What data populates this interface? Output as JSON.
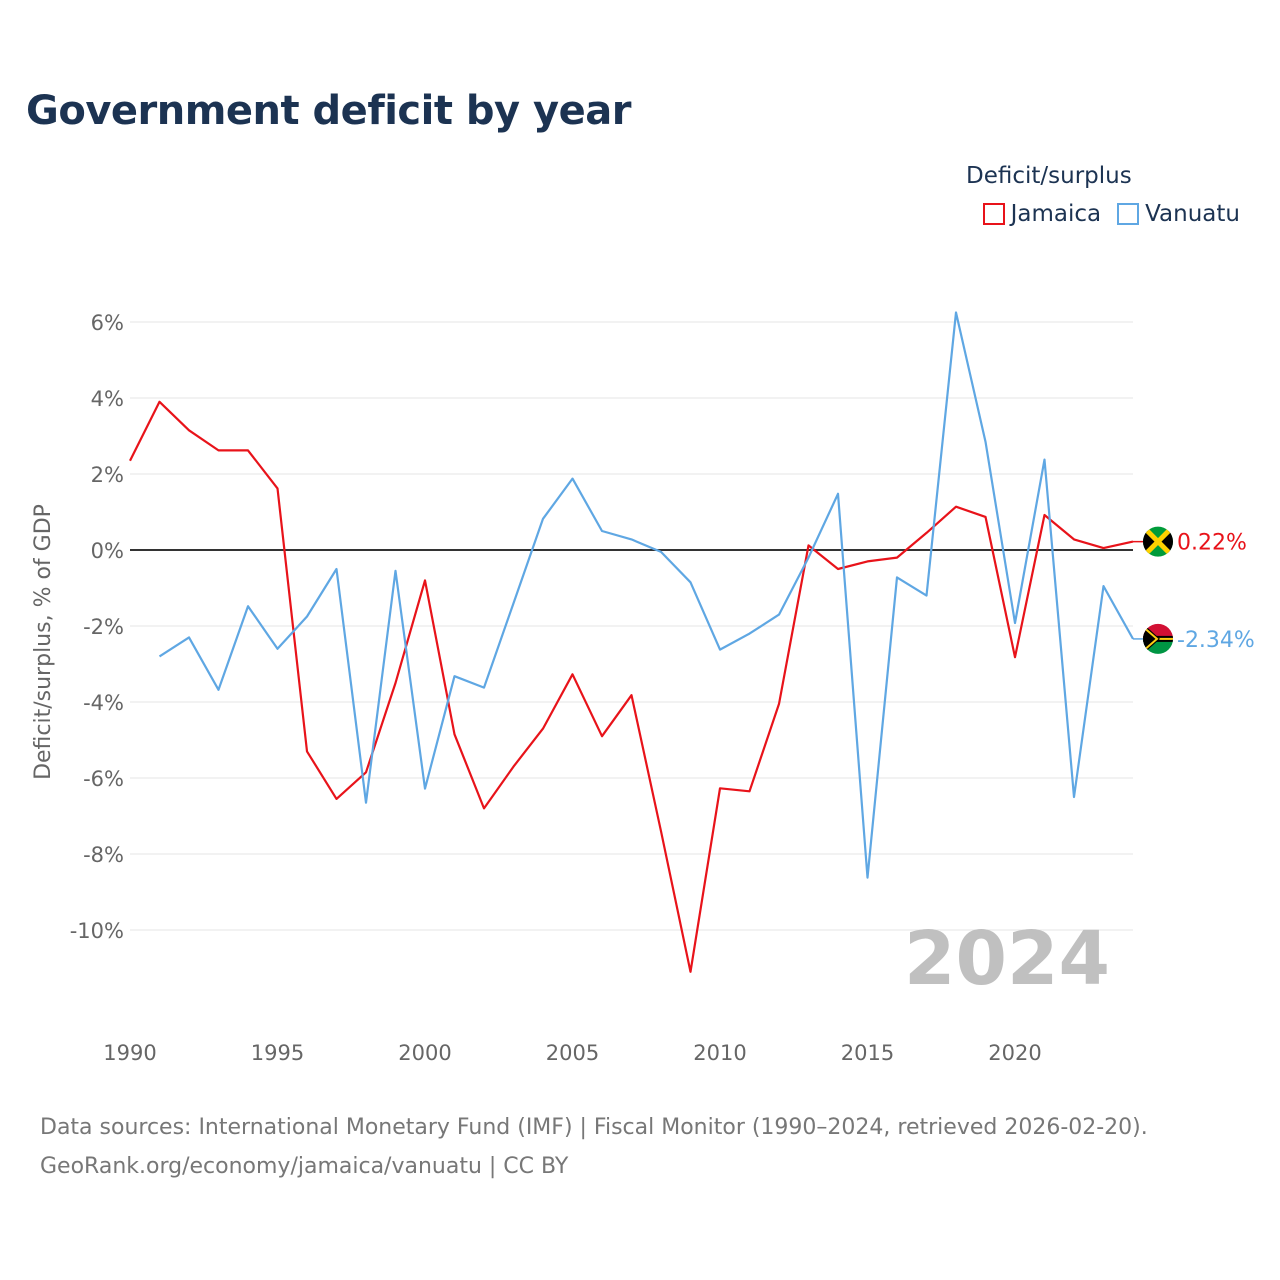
{
  "colors": {
    "jamaica": "#e8131a",
    "vanuatu": "#5fa7e3",
    "title": "#1c3352",
    "axis_text": "#666666",
    "grid": "#e6e6e6",
    "zero_line": "#333333",
    "year_watermark": "#c0c0c0"
  },
  "header": {
    "title": "Government deficit by year"
  },
  "legend": {
    "title": "Deficit/surplus",
    "items": [
      {
        "label": "Jamaica",
        "color": "#e8131a"
      },
      {
        "label": "Vanuatu",
        "color": "#5fa7e3"
      }
    ]
  },
  "footer": {
    "source_line1": "Data sources: International Monetary Fund (IMF) | Fiscal Monitor (1990–2024, retrieved 2026-02-20).",
    "source_line2": "GeoRank.org/economy/jamaica/vanuatu | CC BY"
  },
  "chart_data": {
    "type": "line",
    "title": "Government deficit by year",
    "xlabel": "",
    "ylabel": "Deficit/surplus, % of GDP",
    "xlim": [
      1990,
      2024
    ],
    "ylim": [
      -12,
      6.5
    ],
    "x_ticks": [
      1990,
      1995,
      2000,
      2005,
      2010,
      2015,
      2020
    ],
    "y_ticks": [
      6,
      4,
      2,
      0,
      -2,
      -4,
      -6,
      -8,
      -10
    ],
    "y_tick_labels": [
      "6%",
      "4%",
      "2%",
      "0%",
      "-2%",
      "-4%",
      "-6%",
      "-8%",
      "-10%"
    ],
    "watermark_year": "2024",
    "series": [
      {
        "name": "Jamaica",
        "color": "#e8131a",
        "x": [
          1990,
          1991,
          1992,
          1993,
          1994,
          1995,
          1996,
          1997,
          1998,
          1999,
          2000,
          2001,
          2002,
          2003,
          2004,
          2005,
          2006,
          2007,
          2008,
          2009,
          2010,
          2011,
          2012,
          2013,
          2014,
          2015,
          2016,
          2017,
          2018,
          2019,
          2020,
          2021,
          2022,
          2023,
          2024
        ],
        "values": [
          2.35,
          3.9,
          3.15,
          2.62,
          2.62,
          1.62,
          -5.3,
          -6.55,
          -5.85,
          -3.5,
          -0.8,
          -4.85,
          -6.8,
          -5.7,
          -4.7,
          -3.27,
          -4.9,
          -3.82,
          -7.4,
          -11.1,
          -6.27,
          -6.35,
          -4.05,
          0.12,
          -0.5,
          -0.3,
          -0.2,
          0.45,
          1.14,
          0.87,
          -2.82,
          0.92,
          0.28,
          0.05,
          0.22
        ],
        "end_label": "0.22%"
      },
      {
        "name": "Vanuatu",
        "color": "#5fa7e3",
        "x": [
          1991,
          1992,
          1993,
          1994,
          1995,
          1996,
          1997,
          1998,
          1999,
          2000,
          2001,
          2002,
          2003,
          2004,
          2005,
          2006,
          2007,
          2008,
          2009,
          2010,
          2011,
          2012,
          2013,
          2014,
          2015,
          2016,
          2017,
          2018,
          2019,
          2020,
          2021,
          2022,
          2023,
          2024
        ],
        "values": [
          -2.8,
          -2.3,
          -3.68,
          -1.48,
          -2.6,
          -1.75,
          -0.5,
          -6.65,
          -0.55,
          -6.28,
          -3.32,
          -3.62,
          -1.4,
          0.82,
          1.88,
          0.5,
          0.28,
          -0.05,
          -0.85,
          -2.62,
          -2.2,
          -1.7,
          -0.2,
          1.48,
          -8.62,
          -0.72,
          -1.2,
          6.25,
          2.85,
          -1.92,
          2.38,
          -6.5,
          -0.95,
          -2.34
        ],
        "end_label": "-2.34%"
      }
    ]
  }
}
